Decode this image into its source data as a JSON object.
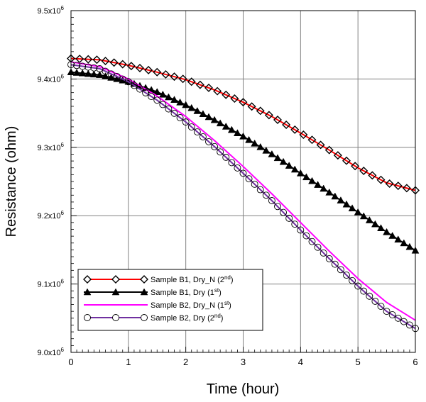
{
  "chart_data": {
    "type": "line",
    "xlabel": "Time (hour)",
    "ylabel": "Resistance (ohm)",
    "xlim": [
      0,
      6
    ],
    "ylim": [
      9000000,
      9500000
    ],
    "x_ticks": [
      "0",
      "1",
      "2",
      "3",
      "4",
      "5",
      "6"
    ],
    "y_ticks": [
      {
        "base": "9.0x10",
        "exp": "6"
      },
      {
        "base": "9.1x10",
        "exp": "6"
      },
      {
        "base": "9.2x10",
        "exp": "6"
      },
      {
        "base": "9.3x10",
        "exp": "6"
      },
      {
        "base": "9.4x10",
        "exp": "6"
      },
      {
        "base": "9.5x10",
        "exp": "6"
      }
    ],
    "grid": true,
    "legend_position": "bottom-left",
    "series": [
      {
        "name": "Sample B1, Dry_N (2nd)",
        "label_base": "Sample B1, Dry_N (2",
        "label_sup": "nd",
        "label_end": ")",
        "color": "#ff0000",
        "marker": "diamond",
        "marker_color": "#000000",
        "x": [
          0,
          0.5,
          1,
          1.5,
          2,
          2.5,
          3,
          3.5,
          4,
          4.5,
          5,
          5.5,
          6
        ],
        "y": [
          9430000,
          9428000,
          9420000,
          9410000,
          9399000,
          9384000,
          9366000,
          9345000,
          9321000,
          9296000,
          9270000,
          9248000,
          9237000
        ]
      },
      {
        "name": "Sample B1, Dry (1st)",
        "label_base": "Sample B1, Dry (1",
        "label_sup": "st",
        "label_end": ")",
        "color": "#000000",
        "marker": "triangle",
        "marker_color": "#000000",
        "x": [
          0,
          0.5,
          1,
          1.5,
          2,
          2.5,
          3,
          3.5,
          4,
          4.5,
          5,
          5.5,
          6
        ],
        "y": [
          9410000,
          9406000,
          9396000,
          9381000,
          9362000,
          9340000,
          9316000,
          9290000,
          9262000,
          9234000,
          9205000,
          9176000,
          9149000
        ]
      },
      {
        "name": "Sample B2, Dry_N (1st)",
        "label_base": "Sample B2, Dry_N (1",
        "label_sup": "st",
        "label_end": ")",
        "color": "#ff00ff",
        "marker": "none",
        "marker_color": "#ff00ff",
        "x": [
          0,
          0.5,
          1,
          1.5,
          2,
          2.5,
          3,
          3.5,
          4,
          4.5,
          5,
          5.5,
          6
        ],
        "y": [
          9425000,
          9418000,
          9400000,
          9375000,
          9345000,
          9310000,
          9272000,
          9232000,
          9190000,
          9148000,
          9108000,
          9073000,
          9047000
        ]
      },
      {
        "name": "Sample B2, Dry (2nd)",
        "label_base": "Sample B2, Dry (2",
        "label_sup": "nd",
        "label_end": ")",
        "color": "#7030a0",
        "marker": "circle",
        "marker_color": "#000000",
        "x": [
          0,
          0.5,
          1,
          1.5,
          2,
          2.5,
          3,
          3.5,
          4,
          4.5,
          5,
          5.5,
          6
        ],
        "y": [
          9421000,
          9415000,
          9396000,
          9369000,
          9337000,
          9301000,
          9262000,
          9222000,
          9179000,
          9137000,
          9097000,
          9060000,
          9035000
        ]
      }
    ]
  }
}
